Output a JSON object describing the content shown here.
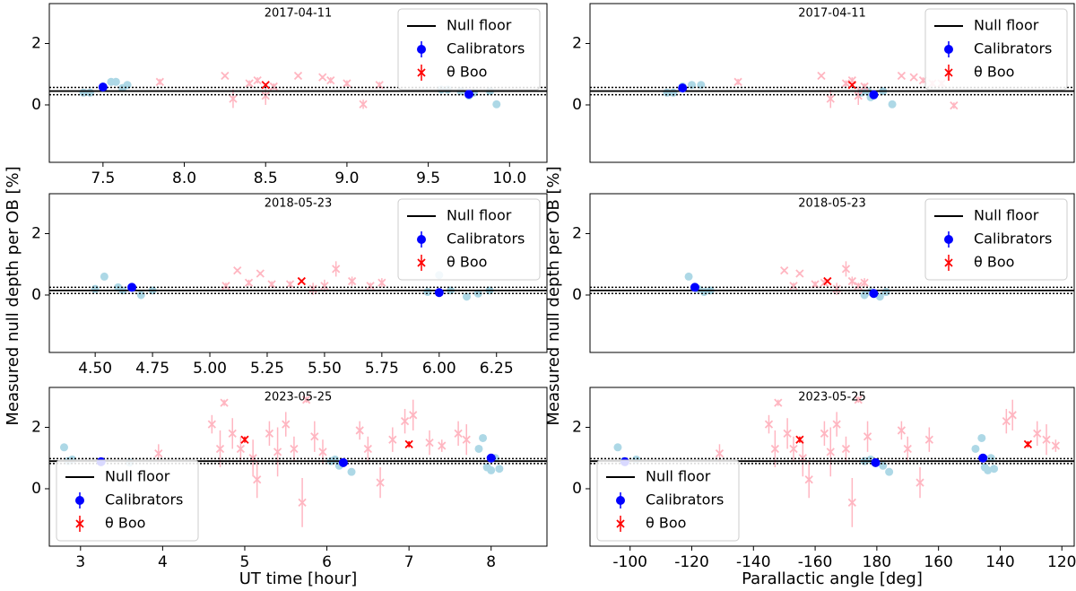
{
  "chart_data": [
    {
      "type": "scatter",
      "title": "2017-04-11",
      "ylabel": "Measured null depth per OB [%]",
      "xlim": [
        7.17,
        10.23
      ],
      "xticks": [
        7.5,
        {
          "value": 8.0,
          "label": "8.0"
        },
        8.5,
        {
          "value": 9.0,
          "label": "9.0"
        },
        9.5,
        {
          "value": 10.0,
          "label": "10.0"
        }
      ],
      "ylim": [
        -1.87,
        3.3
      ],
      "yticks": [
        0,
        2
      ],
      "legend": "upper right",
      "series": [
        {
          "color": "#add8e6",
          "marker": "o",
          "x": [
            7.38,
            7.42,
            7.5,
            7.55,
            7.58,
            7.62,
            7.65,
            9.58,
            9.62,
            9.7,
            9.75,
            9.78,
            9.88,
            9.92
          ],
          "values": [
            0.4,
            0.4,
            0.6,
            0.75,
            0.75,
            0.55,
            0.65,
            0.5,
            0.5,
            0.45,
            0.3,
            0.4,
            0.45,
            0.02
          ]
        },
        {
          "color": "#ffb6c1",
          "marker": "x",
          "x": [
            7.85,
            8.25,
            8.3,
            8.4,
            8.45,
            8.5,
            8.55,
            8.7,
            8.85,
            8.9,
            9.0,
            9.1,
            9.2
          ],
          "values": [
            0.75,
            0.95,
            0.2,
            0.7,
            0.8,
            0.3,
            0.6,
            0.95,
            0.9,
            0.8,
            0.7,
            0.02,
            0.65
          ],
          "errors": [
            0.1,
            0.05,
            0.3,
            0.1,
            0.1,
            0.3,
            0.1,
            0.05,
            0.05,
            0.1,
            0.1,
            0.15,
            0.1
          ]
        },
        {
          "name": "Null floor",
          "color": "#000000",
          "marker": "hline",
          "values": [
            0.45
          ],
          "errors": [
            0.12
          ]
        },
        {
          "name": "Calibrators",
          "color": "#0000ff",
          "marker": "o",
          "x": [
            7.5,
            9.75
          ],
          "values": [
            0.58,
            0.35
          ],
          "errors": [
            0.08,
            0.08
          ]
        },
        {
          "name": "θ Boo",
          "color": "#ff0000",
          "marker": "x",
          "x": [
            8.5
          ],
          "values": [
            0.65
          ],
          "errors": [
            0.05
          ]
        }
      ]
    },
    {
      "type": "scatter",
      "title": "2018-05-23",
      "xlim": [
        4.3,
        6.47
      ],
      "xticks": [
        {
          "value": 4.5,
          "label": "4.50"
        },
        4.75,
        {
          "value": 5.0,
          "label": "5.00"
        },
        5.25,
        {
          "value": 5.5,
          "label": "5.50"
        },
        5.75,
        {
          "value": 6.0,
          "label": "6.00"
        },
        6.25
      ],
      "ylim": [
        -1.87,
        3.3
      ],
      "yticks": [
        0,
        2
      ],
      "legend": "upper right",
      "series": [
        {
          "color": "#add8e6",
          "marker": "o",
          "x": [
            4.5,
            4.54,
            4.6,
            4.62,
            4.7,
            4.75,
            5.95,
            6.0,
            6.05,
            6.12,
            6.17,
            6.22
          ],
          "values": [
            0.2,
            0.6,
            0.25,
            0.15,
            0.0,
            0.15,
            0.1,
            0.65,
            0.15,
            -0.05,
            0.05,
            0.15
          ]
        },
        {
          "color": "#ffb6c1",
          "marker": "x",
          "x": [
            5.07,
            5.12,
            5.17,
            5.22,
            5.27,
            5.35,
            5.45,
            5.5,
            5.55,
            5.62,
            5.7,
            5.75
          ],
          "values": [
            0.3,
            0.8,
            0.4,
            0.7,
            0.35,
            0.35,
            0.2,
            0.3,
            0.85,
            0.45,
            0.3,
            0.4
          ],
          "errors": [
            0.1,
            0.05,
            0.1,
            0.05,
            0.1,
            0.1,
            0.2,
            0.2,
            0.25,
            0.15,
            0.1,
            0.15
          ]
        },
        {
          "name": "Null floor",
          "color": "#000000",
          "marker": "hline",
          "values": [
            0.15
          ],
          "errors": [
            0.1
          ]
        },
        {
          "name": "Calibrators",
          "color": "#0000ff",
          "marker": "o",
          "x": [
            4.66,
            6.0
          ],
          "values": [
            0.25,
            0.08
          ],
          "errors": [
            0.05,
            0.05
          ]
        },
        {
          "name": "θ Boo",
          "color": "#ff0000",
          "marker": "x",
          "x": [
            5.4
          ],
          "values": [
            0.45
          ],
          "errors": [
            0.05
          ]
        }
      ]
    },
    {
      "type": "scatter",
      "title": "2023-05-25",
      "xlabel": "UT time [hour]",
      "xlim": [
        2.62,
        8.68
      ],
      "xticks": [
        3,
        4,
        5,
        6,
        7,
        8
      ],
      "ylim": [
        -1.87,
        3.3
      ],
      "yticks": [
        0,
        2
      ],
      "legend": "lower left",
      "series": [
        {
          "color": "#add8e6",
          "marker": "o",
          "x": [
            2.8,
            2.85,
            2.9,
            3.6,
            6.05,
            6.1,
            6.15,
            6.3,
            7.85,
            7.9,
            7.95,
            8.0,
            8.05,
            8.1
          ],
          "values": [
            1.35,
            0.9,
            0.95,
            0.85,
            0.9,
            0.95,
            0.75,
            0.55,
            1.3,
            1.65,
            0.7,
            0.6,
            1.0,
            0.65
          ]
        },
        {
          "color": "#ffb6c1",
          "marker": "x",
          "x": [
            3.95,
            4.6,
            4.7,
            4.75,
            4.85,
            4.95,
            5.1,
            5.15,
            5.3,
            5.4,
            5.5,
            5.6,
            5.7,
            5.75,
            5.85,
            5.95,
            6.4,
            6.5,
            6.65,
            6.8,
            6.95,
            7.05,
            7.25,
            7.4,
            7.6,
            7.7
          ],
          "values": [
            1.15,
            2.1,
            1.3,
            2.8,
            1.8,
            1.3,
            1.0,
            0.3,
            1.8,
            1.2,
            2.1,
            1.3,
            -0.45,
            2.9,
            1.7,
            1.2,
            1.9,
            1.3,
            0.2,
            1.6,
            2.2,
            2.4,
            1.5,
            1.4,
            1.8,
            1.6
          ],
          "errors": [
            0.3,
            0.3,
            0.6,
            0.1,
            0.5,
            0.4,
            0.6,
            0.6,
            0.4,
            0.8,
            0.4,
            0.4,
            0.8,
            0.1,
            0.5,
            0.4,
            0.3,
            0.4,
            0.5,
            0.4,
            0.4,
            0.5,
            0.4,
            0.2,
            0.4,
            0.5
          ]
        },
        {
          "name": "Null floor",
          "color": "#000000",
          "marker": "hline",
          "values": [
            0.9
          ],
          "errors": [
            0.08
          ]
        },
        {
          "name": "Calibrators",
          "color": "#0000ff",
          "marker": "o",
          "x": [
            3.25,
            6.2,
            8.0
          ],
          "values": [
            0.88,
            0.85,
            1.0
          ],
          "errors": [
            0.05,
            0.1,
            0.1
          ]
        },
        {
          "name": "θ Boo",
          "color": "#ff0000",
          "marker": "x",
          "x": [
            5.0,
            7.0
          ],
          "values": [
            1.6,
            1.45
          ],
          "errors": [
            0.1,
            0.1
          ]
        }
      ]
    },
    {
      "type": "scatter",
      "title": "2017-04-11",
      "ylabel": "Measured null depth per OB [%]",
      "xlim": [
        273,
        116
      ],
      "ylim": [
        -1.87,
        3.3
      ],
      "yticks": [
        0,
        2
      ],
      "legend": "upper right",
      "series": [
        {
          "color": "#add8e6",
          "marker": "o",
          "x": [
            248,
            246,
            243,
            240,
            237,
            185,
            183,
            182,
            178,
            175
          ],
          "values": [
            0.4,
            0.4,
            0.6,
            0.65,
            0.65,
            0.4,
            0.45,
            0.25,
            0.45,
            0.02
          ]
        },
        {
          "color": "#ffb6c1",
          "marker": "x",
          "x": [
            225,
            198,
            195,
            190,
            188,
            186,
            184,
            172,
            168,
            165,
            162,
            159,
            155
          ],
          "values": [
            0.75,
            0.95,
            0.2,
            0.7,
            0.8,
            0.3,
            0.6,
            0.95,
            0.9,
            0.8,
            0.7,
            0.7,
            -0.02
          ],
          "errors": [
            0.1,
            0.05,
            0.3,
            0.1,
            0.1,
            0.3,
            0.1,
            0.05,
            0.05,
            0.1,
            0.1,
            0.1,
            0.1
          ]
        },
        {
          "name": "Null floor",
          "color": "#000000",
          "marker": "hline",
          "values": [
            0.45
          ],
          "errors": [
            0.12
          ]
        },
        {
          "name": "Calibrators",
          "color": "#0000ff",
          "marker": "o",
          "x": [
            243,
            181
          ],
          "values": [
            0.55,
            0.33
          ],
          "errors": [
            0.08,
            0.08
          ]
        },
        {
          "name": "θ Boo",
          "color": "#ff0000",
          "marker": "x",
          "x": [
            188
          ],
          "values": [
            0.65
          ],
          "errors": [
            0.05
          ]
        }
      ]
    },
    {
      "type": "scatter",
      "title": "2018-05-23",
      "xlim": [
        273,
        116
      ],
      "ylim": [
        -1.87,
        3.3
      ],
      "yticks": [
        0,
        2
      ],
      "legend": "upper right",
      "series": [
        {
          "color": "#add8e6",
          "marker": "o",
          "x": [
            241,
            238,
            236,
            234,
            184,
            182,
            179,
            177
          ],
          "values": [
            0.6,
            0.2,
            0.1,
            0.15,
            0.0,
            0.1,
            -0.05,
            0.1
          ]
        },
        {
          "color": "#ffb6c1",
          "marker": "x",
          "x": [
            210,
            207,
            205,
            200,
            197,
            193,
            190,
            188,
            186,
            184
          ],
          "values": [
            0.8,
            0.3,
            0.7,
            0.35,
            0.4,
            0.2,
            0.85,
            0.45,
            0.3,
            0.4
          ],
          "errors": [
            0.05,
            0.1,
            0.05,
            0.1,
            0.1,
            0.2,
            0.25,
            0.15,
            0.1,
            0.15
          ]
        },
        {
          "name": "Null floor",
          "color": "#000000",
          "marker": "hline",
          "values": [
            0.15
          ],
          "errors": [
            0.1
          ]
        },
        {
          "name": "Calibrators",
          "color": "#0000ff",
          "marker": "o",
          "x": [
            239,
            181
          ],
          "values": [
            0.25,
            0.05
          ],
          "errors": [
            0.05,
            0.05
          ]
        },
        {
          "name": "θ Boo",
          "color": "#ff0000",
          "marker": "x",
          "x": [
            196
          ],
          "values": [
            0.45
          ],
          "errors": [
            0.05
          ]
        }
      ]
    },
    {
      "type": "scatter",
      "title": "2023-05-25",
      "xlabel": "Parallactic angle [deg]",
      "xlim": [
        273,
        116
      ],
      "xticks": [
        {
          "value": 260,
          "label": "-100"
        },
        {
          "value": 240,
          "label": "-120"
        },
        {
          "value": 220,
          "label": "-140"
        },
        {
          "value": 200,
          "label": "-160"
        },
        180,
        160,
        140,
        120
      ],
      "ylim": [
        -1.87,
        3.3
      ],
      "yticks": [
        0,
        2
      ],
      "legend": "lower left",
      "series": [
        {
          "color": "#add8e6",
          "marker": "o",
          "x": [
            264,
            262,
            258,
            184,
            182,
            178,
            176,
            148,
            146,
            145,
            144,
            143,
            142
          ],
          "values": [
            1.35,
            0.9,
            0.95,
            0.9,
            0.95,
            0.75,
            0.55,
            1.3,
            1.65,
            0.7,
            0.6,
            1.0,
            0.65
          ]
        },
        {
          "color": "#ffb6c1",
          "marker": "x",
          "x": [
            231,
            215,
            213,
            212,
            209,
            207,
            204,
            202,
            197,
            195,
            193,
            190,
            188,
            186,
            183,
            172,
            170,
            166,
            163,
            138,
            136,
            128,
            125,
            122
          ],
          "values": [
            1.15,
            2.1,
            1.3,
            2.8,
            1.8,
            1.3,
            1.0,
            0.3,
            1.8,
            1.2,
            2.1,
            1.3,
            -0.45,
            2.9,
            1.7,
            1.9,
            1.3,
            0.2,
            1.6,
            2.2,
            2.4,
            1.8,
            1.6,
            1.4
          ],
          "errors": [
            0.3,
            0.3,
            0.6,
            0.1,
            0.5,
            0.4,
            0.6,
            0.6,
            0.4,
            0.8,
            0.4,
            0.4,
            0.8,
            0.1,
            0.5,
            0.3,
            0.4,
            0.5,
            0.4,
            0.4,
            0.5,
            0.4,
            0.5,
            0.2
          ]
        },
        {
          "name": "Null floor",
          "color": "#000000",
          "marker": "hline",
          "values": [
            0.9
          ],
          "errors": [
            0.08
          ]
        },
        {
          "name": "Calibrators",
          "color": "#0000ff",
          "marker": "o",
          "x": [
            261.7,
            180.4,
            145.6
          ],
          "values": [
            0.88,
            0.85,
            1.0
          ],
          "errors": [
            0.05,
            0.1,
            0.1
          ]
        },
        {
          "name": "θ Boo",
          "color": "#ff0000",
          "marker": "x",
          "x": [
            205,
            131
          ],
          "values": [
            1.6,
            1.45
          ],
          "errors": [
            0.1,
            0.1
          ]
        }
      ]
    }
  ]
}
